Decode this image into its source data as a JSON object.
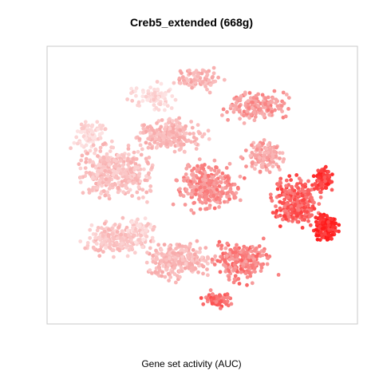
{
  "chart_data": {
    "type": "scatter",
    "title": "Creb5_extended (668g)",
    "xlabel": "Gene set activity (AUC)",
    "ylabel": "",
    "grid": false,
    "legend": "none",
    "colors": {
      "low": "#fde3e3",
      "mid": "#f7a3a3",
      "high": "#ff1a1a",
      "frame": "#c8c8c8"
    },
    "clusters": [
      {
        "x": 0.49,
        "y": 0.88,
        "rx": 0.09,
        "ry": 0.05,
        "n": 90,
        "activity": 0.35
      },
      {
        "x": 0.34,
        "y": 0.82,
        "rx": 0.09,
        "ry": 0.06,
        "n": 90,
        "activity": 0.08
      },
      {
        "x": 0.68,
        "y": 0.78,
        "rx": 0.14,
        "ry": 0.07,
        "n": 170,
        "activity": 0.48
      },
      {
        "x": 0.14,
        "y": 0.68,
        "rx": 0.06,
        "ry": 0.07,
        "n": 90,
        "activity": 0.06
      },
      {
        "x": 0.4,
        "y": 0.68,
        "rx": 0.14,
        "ry": 0.08,
        "n": 240,
        "activity": 0.3
      },
      {
        "x": 0.7,
        "y": 0.6,
        "rx": 0.08,
        "ry": 0.07,
        "n": 140,
        "activity": 0.42
      },
      {
        "x": 0.22,
        "y": 0.55,
        "rx": 0.17,
        "ry": 0.13,
        "n": 380,
        "activity": 0.24
      },
      {
        "x": 0.52,
        "y": 0.5,
        "rx": 0.13,
        "ry": 0.11,
        "n": 300,
        "activity": 0.52
      },
      {
        "x": 0.8,
        "y": 0.44,
        "rx": 0.1,
        "ry": 0.12,
        "n": 260,
        "activity": 0.72
      },
      {
        "x": 0.9,
        "y": 0.35,
        "rx": 0.05,
        "ry": 0.07,
        "n": 140,
        "activity": 0.95
      },
      {
        "x": 0.89,
        "y": 0.52,
        "rx": 0.04,
        "ry": 0.06,
        "n": 80,
        "activity": 0.86
      },
      {
        "x": 0.22,
        "y": 0.31,
        "rx": 0.13,
        "ry": 0.08,
        "n": 220,
        "activity": 0.2
      },
      {
        "x": 0.42,
        "y": 0.23,
        "rx": 0.14,
        "ry": 0.09,
        "n": 240,
        "activity": 0.3
      },
      {
        "x": 0.63,
        "y": 0.23,
        "rx": 0.12,
        "ry": 0.1,
        "n": 230,
        "activity": 0.58
      },
      {
        "x": 0.55,
        "y": 0.09,
        "rx": 0.06,
        "ry": 0.04,
        "n": 80,
        "activity": 0.66
      },
      {
        "x": 0.3,
        "y": 0.34,
        "rx": 0.06,
        "ry": 0.06,
        "n": 70,
        "activity": 0.12
      }
    ]
  }
}
